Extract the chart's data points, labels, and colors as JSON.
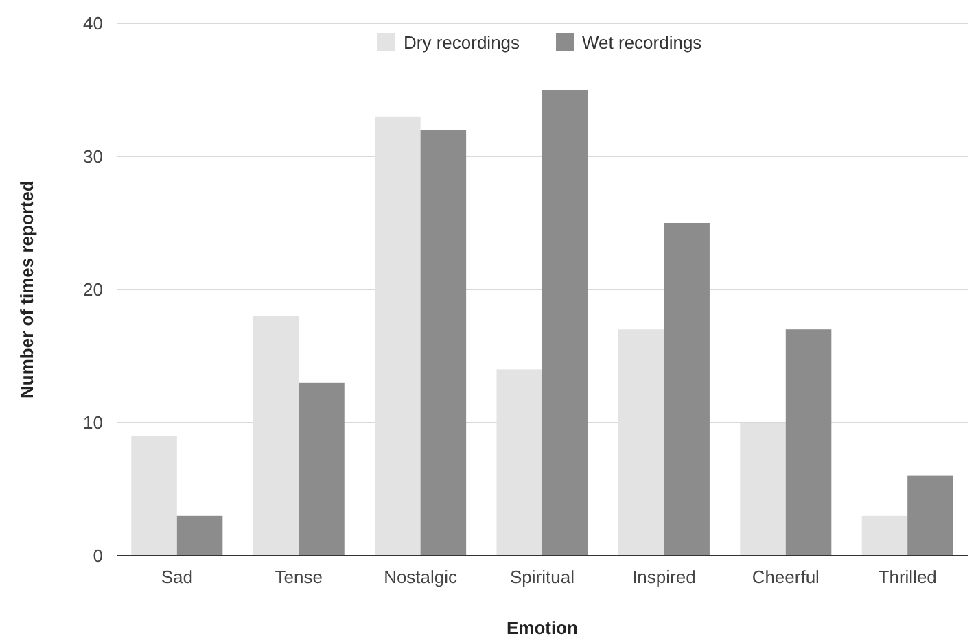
{
  "chart_data": {
    "type": "bar",
    "xlabel": "Emotion",
    "ylabel": "Number of times reported",
    "categories": [
      "Sad",
      "Tense",
      "Nostalgic",
      "Spiritual",
      "Inspired",
      "Cheerful",
      "Thrilled"
    ],
    "series": [
      {
        "name": "Dry recordings",
        "color": "#e3e3e3",
        "values": [
          9,
          18,
          33,
          14,
          17,
          10,
          3
        ]
      },
      {
        "name": "Wet recordings",
        "color": "#8c8c8c",
        "values": [
          3,
          13,
          32,
          35,
          25,
          17,
          6
        ]
      }
    ],
    "ylim": [
      0,
      40
    ],
    "yticks": [
      0,
      10,
      20,
      30,
      40
    ],
    "grid": "y",
    "legend": "top"
  }
}
